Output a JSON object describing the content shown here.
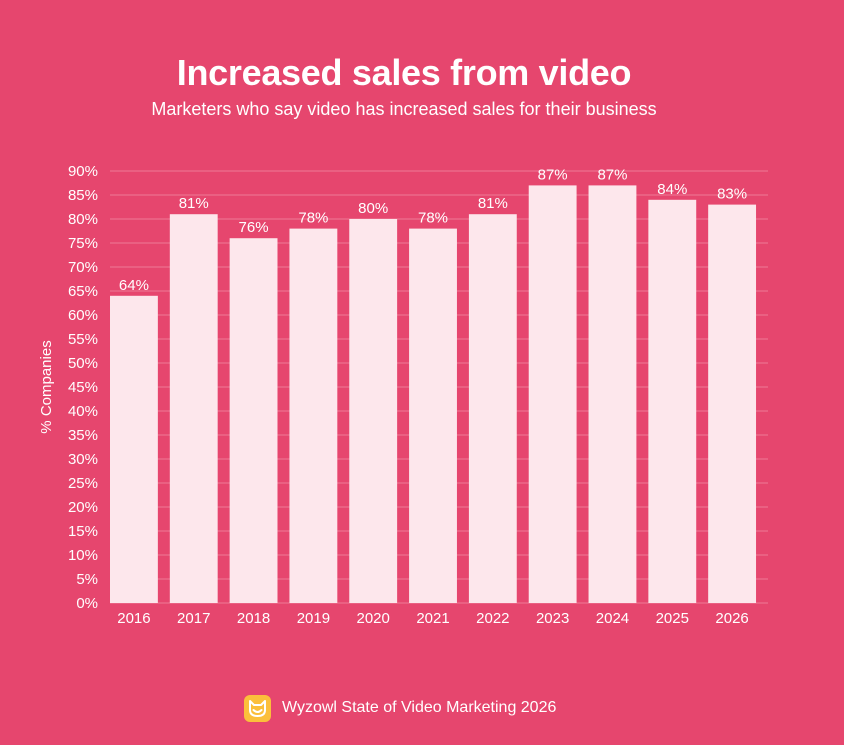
{
  "colors": {
    "background": "#E6466E",
    "bar": "#FDE7EC",
    "text": "#FFFFFF",
    "logo": "#FBBF3B"
  },
  "chart_data": {
    "type": "bar",
    "title": "Increased sales from video",
    "subtitle": "Marketers who say video has increased sales for their business",
    "ylabel": "% Companies",
    "xlabel": "",
    "categories": [
      "2016",
      "2017",
      "2018",
      "2019",
      "2020",
      "2021",
      "2022",
      "2023",
      "2024",
      "2025",
      "2026"
    ],
    "values": [
      64,
      81,
      76,
      78,
      80,
      78,
      81,
      87,
      87,
      84,
      83
    ],
    "data_labels": [
      "64%",
      "81%",
      "76%",
      "78%",
      "80%",
      "78%",
      "81%",
      "87%",
      "87%",
      "84%",
      "83%"
    ],
    "ylim": [
      0,
      90
    ],
    "yticks": [
      "0%",
      "5%",
      "10%",
      "15%",
      "20%",
      "25%",
      "30%",
      "35%",
      "40%",
      "45%",
      "50%",
      "55%",
      "60%",
      "65%",
      "70%",
      "75%",
      "80%",
      "85%",
      "90%"
    ],
    "grid": true,
    "legend": "none"
  },
  "footer": {
    "source": "Wyzowl State of Video Marketing 2026",
    "logo_icon": "owl-logo-icon"
  }
}
